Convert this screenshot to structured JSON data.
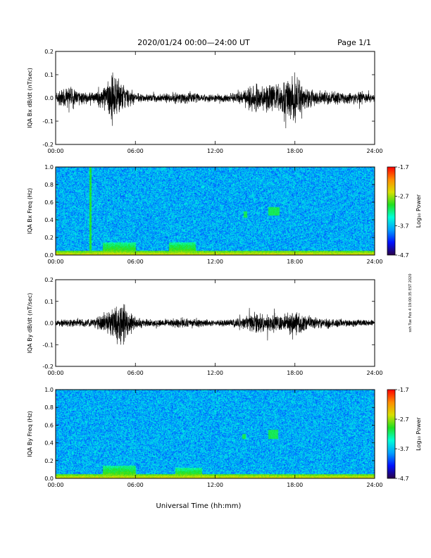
{
  "header": {
    "title": "2020/01/24  00:00—24:00 UT",
    "page": "Page 1/1"
  },
  "footer": {
    "xlabel": "Universal Time (hh:mm)",
    "side_stamp": "ssh Tue Feb 4 19:00:35 EST 2020"
  },
  "colors": {
    "trace": "#000000",
    "colormap": [
      "#2a0046",
      "#0010ff",
      "#00a0ff",
      "#00ffd8",
      "#20e020",
      "#d8e000",
      "#ff8c00",
      "#ff0000"
    ]
  },
  "chart_data": [
    {
      "type": "line",
      "ylabel": "IQA Bx dB/dt (nT/sec)",
      "xlim": [
        0,
        24
      ],
      "ylim": [
        -0.2,
        0.2
      ],
      "xticks": [
        "00:00",
        "06:00",
        "12:00",
        "18:00",
        "24:00"
      ],
      "yticks": [
        "-0.2",
        "-0.1",
        "0.0",
        "0.1",
        "0.2"
      ],
      "series": [
        {
          "x": [
            0,
            1,
            2,
            3,
            3.5,
            4,
            4.3,
            4.7,
            5,
            5.5,
            6,
            7,
            8,
            9,
            10,
            11,
            12,
            13,
            14,
            14.5,
            15,
            15.5,
            16,
            16.5,
            17,
            17.5,
            18,
            18.5,
            19,
            20,
            21,
            22,
            23,
            24
          ],
          "envelope": [
            0.03,
            0.06,
            0.03,
            0.025,
            0.06,
            0.09,
            0.13,
            0.1,
            0.07,
            0.05,
            0.025,
            0.02,
            0.02,
            0.03,
            0.03,
            0.02,
            0.02,
            0.02,
            0.03,
            0.06,
            0.08,
            0.06,
            0.07,
            0.07,
            0.09,
            0.1,
            0.13,
            0.09,
            0.05,
            0.04,
            0.03,
            0.03,
            0.03,
            0.02
          ]
        }
      ]
    },
    {
      "type": "heatmap",
      "ylabel": "IQA Bx Freq (Hz)",
      "xlim": [
        0,
        24
      ],
      "ylim": [
        0,
        1.0
      ],
      "xticks": [
        "00:00",
        "06:00",
        "12:00",
        "18:00",
        "24:00"
      ],
      "yticks": [
        "0.0",
        "0.2",
        "0.4",
        "0.6",
        "0.8",
        "1.0"
      ],
      "colorbar": {
        "label": "Log₁₀ Power",
        "range": [
          -4.7,
          -1.7
        ],
        "ticks": [
          "-1.7",
          "-2.7",
          "-3.7",
          "-4.7"
        ]
      },
      "features": [
        {
          "kind": "vertical-line",
          "x": 2.6
        },
        {
          "kind": "low-frequency-band",
          "x_range": [
            0,
            24
          ],
          "f_max": 0.05
        },
        {
          "kind": "enhancement",
          "x_range": [
            3.5,
            6
          ],
          "f_max": 0.15
        },
        {
          "kind": "enhancement",
          "x_range": [
            8.5,
            10.5
          ],
          "f_max": 0.15
        },
        {
          "kind": "patch",
          "x_range": [
            14.1,
            14.4
          ],
          "f_range": [
            0.43,
            0.5
          ]
        },
        {
          "kind": "patch",
          "x_range": [
            16,
            16.8
          ],
          "f_range": [
            0.45,
            0.55
          ]
        }
      ]
    },
    {
      "type": "line",
      "ylabel": "IQA By dB/dt (nT/sec)",
      "xlim": [
        0,
        24
      ],
      "ylim": [
        -0.2,
        0.2
      ],
      "xticks": [
        "00:00",
        "06:00",
        "12:00",
        "18:00",
        "24:00"
      ],
      "yticks": [
        "-0.2",
        "-0.1",
        "0.0",
        "0.1",
        "0.2"
      ],
      "series": [
        {
          "x": [
            0,
            1,
            2,
            3,
            3.5,
            4,
            4.5,
            5,
            5.5,
            6,
            7,
            8,
            9,
            10,
            11,
            12,
            13,
            14,
            14.5,
            15,
            15.5,
            16,
            16.5,
            17,
            17.5,
            18,
            18.5,
            19,
            20,
            21,
            22,
            23,
            24
          ],
          "envelope": [
            0.02,
            0.02,
            0.02,
            0.03,
            0.05,
            0.07,
            0.1,
            0.12,
            0.07,
            0.03,
            0.02,
            0.02,
            0.025,
            0.03,
            0.02,
            0.015,
            0.02,
            0.03,
            0.04,
            0.06,
            0.05,
            0.05,
            0.05,
            0.04,
            0.05,
            0.07,
            0.05,
            0.04,
            0.03,
            0.025,
            0.02,
            0.02,
            0.015
          ]
        }
      ]
    },
    {
      "type": "heatmap",
      "ylabel": "IQA By Freq (Hz)",
      "xlim": [
        0,
        24
      ],
      "ylim": [
        0,
        1.0
      ],
      "xticks": [
        "00:00",
        "06:00",
        "12:00",
        "18:00",
        "24:00"
      ],
      "yticks": [
        "0.0",
        "0.2",
        "0.4",
        "0.6",
        "0.8",
        "1.0"
      ],
      "colorbar": {
        "label": "Log₁₀ Power",
        "range": [
          -4.7,
          -1.7
        ],
        "ticks": [
          "-1.7",
          "-2.7",
          "-3.7",
          "-4.7"
        ]
      },
      "features": [
        {
          "kind": "low-frequency-band",
          "x_range": [
            0,
            24
          ],
          "f_max": 0.05
        },
        {
          "kind": "enhancement",
          "x_range": [
            3.5,
            6
          ],
          "f_max": 0.15
        },
        {
          "kind": "enhancement",
          "x_range": [
            9,
            11
          ],
          "f_max": 0.12
        },
        {
          "kind": "patch",
          "x_range": [
            14,
            14.3
          ],
          "f_range": [
            0.45,
            0.5
          ]
        },
        {
          "kind": "patch",
          "x_range": [
            16,
            16.7
          ],
          "f_range": [
            0.45,
            0.55
          ]
        }
      ]
    }
  ]
}
